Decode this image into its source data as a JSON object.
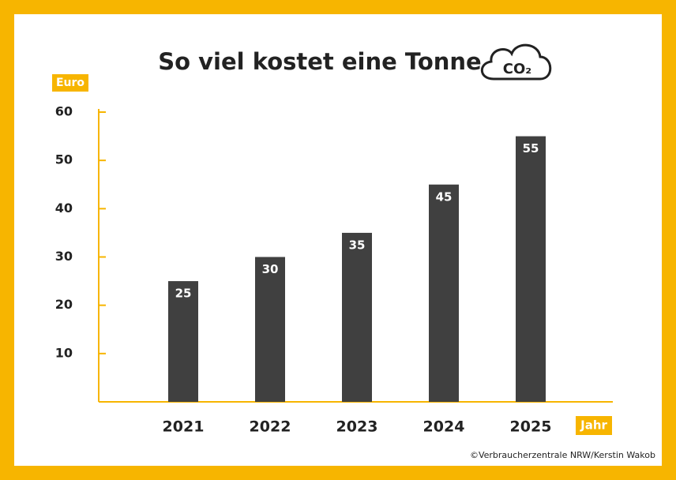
{
  "chart_data": {
    "type": "bar",
    "title": "So viel kostet eine Tonne",
    "title_icon_text": "CO₂",
    "y_label": "Euro",
    "x_label": "Jahr",
    "credit": "©Verbraucherzentrale NRW/Kerstin Wakob",
    "categories": [
      "2021",
      "2022",
      "2023",
      "2024",
      "2025"
    ],
    "values": [
      25,
      30,
      35,
      45,
      55
    ],
    "color": "#404040",
    "ylim": [
      0,
      60
    ],
    "yticks": [
      10,
      20,
      30,
      40,
      50,
      60
    ],
    "grid": false
  }
}
